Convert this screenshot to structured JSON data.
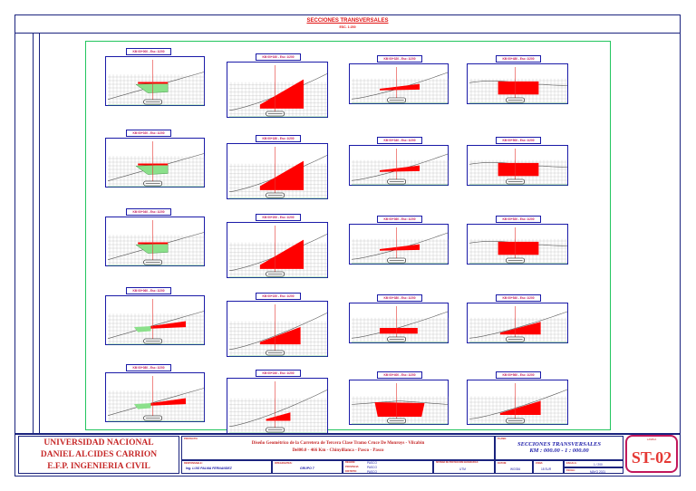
{
  "sheet": {
    "title": "SECCIONES TRANSVERSALES",
    "scale": "ESC. 1:200"
  },
  "colors": {
    "frame": "#1a237e",
    "fill": "#ff0000",
    "fill_green": "#8be08b",
    "label_text": "#c2185b",
    "title_red": "#c62828"
  },
  "sections": [
    {
      "label": "KM 00+000 - Esc: 1/200",
      "fill": "green-left"
    },
    {
      "label": "KM 00+160 - Esc: 1/200",
      "fill": "red-right-large"
    },
    {
      "label": "KM 00+320 - Esc: 1/200",
      "fill": "red-wedge"
    },
    {
      "label": "KM 00+480 - Esc: 1/200",
      "fill": "red-block"
    },
    {
      "label": "KM 00+020 - Esc: 1/200",
      "fill": "green-left"
    },
    {
      "label": "KM 00+180 - Esc: 1/200",
      "fill": "red-right-large"
    },
    {
      "label": "KM 00+340 - Esc: 1/200",
      "fill": "red-wedge"
    },
    {
      "label": "KM 00+500 - Esc: 1/200",
      "fill": "red-block"
    },
    {
      "label": "KM 00+040 - Esc: 1/200",
      "fill": "green-left"
    },
    {
      "label": "KM 00+200 - Esc: 1/200",
      "fill": "red-right-large"
    },
    {
      "label": "KM 00+360 - Esc: 1/200",
      "fill": "red-wedge"
    },
    {
      "label": "KM 00+520 - Esc: 1/200",
      "fill": "red-block"
    },
    {
      "label": "KM 00+060 - Esc: 1/200",
      "fill": "mixed"
    },
    {
      "label": "KM 00+220 - Esc: 1/200",
      "fill": "red-right"
    },
    {
      "label": "KM 00+380 - Esc: 1/200",
      "fill": "red-flat"
    },
    {
      "label": "KM 00+540 - Esc: 1/200",
      "fill": "red-right"
    },
    {
      "label": "KM 00+080 - Esc: 1/200",
      "fill": "mixed-small"
    },
    {
      "label": "KM 00+240 - Esc: 1/200",
      "fill": "red-small"
    },
    {
      "label": "KM 00+400 - Esc: 1/200",
      "fill": "red-wide"
    },
    {
      "label": "KM 00+560 - Esc: 1/200",
      "fill": "red-right"
    }
  ],
  "titleblock": {
    "univ_line1": "UNIVERSIDAD NACIONAL",
    "univ_line2": "DANIEL ALCIDES CARRION",
    "univ_line3": "E.F.P. INGENIERIA CIVIL",
    "proyecto_label": "PROYECTO:",
    "proyecto_line1": "Diseño Geométrico de la Carretera de Tercera Clase Tramo Cruce De Monroys - Vilcabin",
    "proyecto_line2": "Del00.0 - 466 Km - Chinyillanca - Pasco - Pasco",
    "plano_label": "PLANO:",
    "plano_title": "SECCIONES TRANSVERSALES",
    "plano_sub": "KM : 000.00 - 1 : 000.00",
    "responsable_label": "RESPONSABLE:",
    "responsable": "Ing. LUIS PALMA FERNANDEZ",
    "grupo_label": "INTEGRANTES:",
    "grupo": "GRUPO 7",
    "region_label": "REGION:",
    "region": "PASCO",
    "provincia_label": "PROVINCIA:",
    "provincia": "PASCO",
    "distrito_label": "DISTRITO:",
    "distrito": "PASCO",
    "sistema_label": "SISTEMA DE PROYECCION GEOGRAFICA:",
    "sistema": "UTM",
    "datum_label": "DATUM:",
    "datum": "WGS84",
    "zona_label": "ZONA:",
    "zona": "18 SUR",
    "escala_label": "ESCALA:",
    "escala": "1 / 200",
    "fecha_label": "FECHA:",
    "fecha": "MAYO 2021",
    "lamina_label": "LAMINA",
    "lamina": "ST-02"
  }
}
